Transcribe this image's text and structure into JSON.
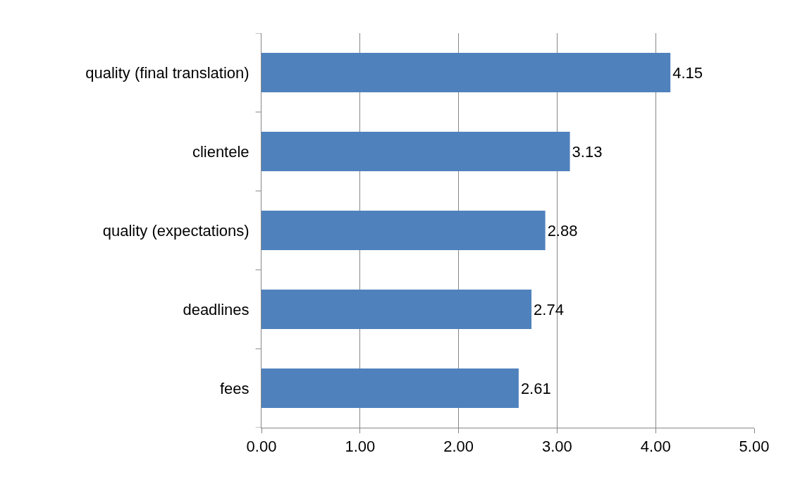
{
  "chart_data": {
    "type": "bar",
    "orientation": "horizontal",
    "categories": [
      "quality (final translation)",
      "clientele",
      "quality (expectations)",
      "deadlines",
      "fees"
    ],
    "values": [
      4.15,
      3.13,
      2.88,
      2.74,
      2.61
    ],
    "color": "#4f81bd",
    "xlim": [
      0,
      5
    ],
    "xticks": [
      {
        "value": 0,
        "label": "0.00"
      },
      {
        "value": 1,
        "label": "1.00"
      },
      {
        "value": 2,
        "label": "2.00"
      },
      {
        "value": 3,
        "label": "3.00"
      },
      {
        "value": 4,
        "label": "4.00"
      },
      {
        "value": 5,
        "label": "5.00"
      }
    ],
    "grid": "x",
    "data_labels": true
  }
}
